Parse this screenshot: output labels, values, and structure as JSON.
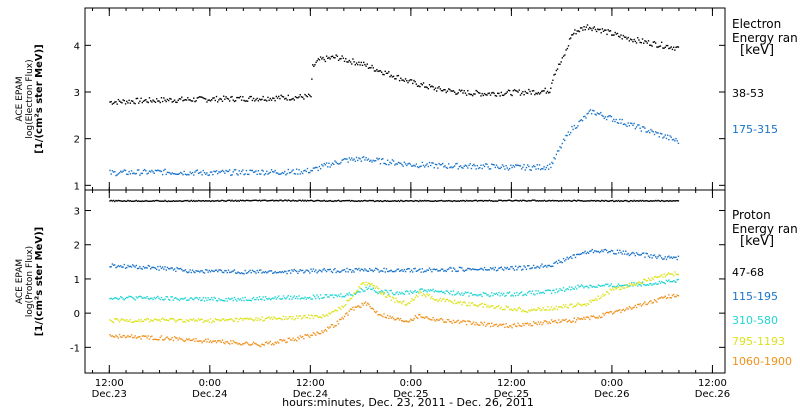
{
  "chart_data": [
    {
      "type": "scatter",
      "panel": "electron",
      "ylabel_lines": [
        "ACE EPAM",
        "log(Electron Flux)",
        "[1/(cm²s ster MeV)]"
      ],
      "legend_title": [
        "Electron",
        "Energy ran",
        "[keV]"
      ],
      "ylim": [
        0.9,
        4.8
      ],
      "yticks": [
        1,
        2,
        3,
        4
      ],
      "series": [
        {
          "name": "38-53",
          "color": "#000000",
          "points": [
            [
              0,
              2.8
            ],
            [
              6,
              2.84
            ],
            [
              12,
              2.86
            ],
            [
              18,
              2.88
            ],
            [
              22,
              2.9
            ],
            [
              24,
              2.92
            ],
            [
              24.2,
              3.55
            ],
            [
              25,
              3.7
            ],
            [
              27,
              3.76
            ],
            [
              30,
              3.62
            ],
            [
              33,
              3.42
            ],
            [
              36,
              3.22
            ],
            [
              39,
              3.08
            ],
            [
              42,
              3.0
            ],
            [
              45,
              2.98
            ],
            [
              48,
              3.0
            ],
            [
              51,
              3.02
            ],
            [
              52.5,
              3.05
            ],
            [
              53,
              3.4
            ],
            [
              54,
              3.7
            ],
            [
              54.6,
              3.95
            ],
            [
              55,
              4.2
            ],
            [
              55.5,
              4.3
            ],
            [
              57,
              4.42
            ],
            [
              58.5,
              4.35
            ],
            [
              61,
              4.2
            ],
            [
              64,
              4.08
            ],
            [
              68,
              3.95
            ]
          ]
        },
        {
          "name": "175-315",
          "color": "#1a73c8",
          "points": [
            [
              0,
              1.28
            ],
            [
              6,
              1.3
            ],
            [
              12,
              1.28
            ],
            [
              18,
              1.3
            ],
            [
              22,
              1.3
            ],
            [
              24,
              1.33
            ],
            [
              26,
              1.45
            ],
            [
              28,
              1.55
            ],
            [
              30,
              1.58
            ],
            [
              33,
              1.52
            ],
            [
              36,
              1.46
            ],
            [
              40,
              1.43
            ],
            [
              45,
              1.42
            ],
            [
              48,
              1.4
            ],
            [
              51,
              1.4
            ],
            [
              52.5,
              1.42
            ],
            [
              53,
              1.55
            ],
            [
              54,
              1.9
            ],
            [
              55,
              2.2
            ],
            [
              56,
              2.35
            ],
            [
              57.5,
              2.6
            ],
            [
              59,
              2.5
            ],
            [
              61,
              2.38
            ],
            [
              64,
              2.2
            ],
            [
              68,
              1.95
            ]
          ]
        }
      ]
    },
    {
      "type": "scatter",
      "panel": "proton",
      "ylabel_lines": [
        "ACE EPAM",
        "log(Proton Flux)",
        "[1/(cm²s ster MeV)]"
      ],
      "legend_title": [
        "Proton",
        "Energy ran",
        "[keV]"
      ],
      "ylim": [
        -1.75,
        3.6
      ],
      "yticks": [
        -1,
        0,
        1,
        2,
        3
      ],
      "series": [
        {
          "name": "47-68",
          "color": "#000000",
          "points": [
            [
              0,
              3.3
            ],
            [
              10,
              3.3
            ],
            [
              20,
              3.31
            ],
            [
              30,
              3.3
            ],
            [
              40,
              3.3
            ],
            [
              50,
              3.31
            ],
            [
              60,
              3.3
            ],
            [
              68,
              3.3
            ]
          ]
        },
        {
          "name": "115-195",
          "color": "#1a73c8",
          "points": [
            [
              0,
              1.4
            ],
            [
              5,
              1.35
            ],
            [
              10,
              1.25
            ],
            [
              15,
              1.23
            ],
            [
              20,
              1.22
            ],
            [
              25,
              1.26
            ],
            [
              30,
              1.28
            ],
            [
              35,
              1.26
            ],
            [
              40,
              1.3
            ],
            [
              45,
              1.3
            ],
            [
              50,
              1.35
            ],
            [
              53,
              1.45
            ],
            [
              56,
              1.75
            ],
            [
              58,
              1.85
            ],
            [
              60,
              1.82
            ],
            [
              63,
              1.74
            ],
            [
              66,
              1.65
            ],
            [
              68,
              1.62
            ]
          ]
        },
        {
          "name": "310-580",
          "color": "#22d4d4",
          "points": [
            [
              0,
              0.48
            ],
            [
              6,
              0.45
            ],
            [
              12,
              0.42
            ],
            [
              18,
              0.45
            ],
            [
              22,
              0.48
            ],
            [
              26,
              0.5
            ],
            [
              29,
              0.58
            ],
            [
              31,
              0.78
            ],
            [
              32,
              0.65
            ],
            [
              34,
              0.62
            ],
            [
              36,
              0.64
            ],
            [
              38,
              0.7
            ],
            [
              42,
              0.58
            ],
            [
              46,
              0.56
            ],
            [
              50,
              0.6
            ],
            [
              53,
              0.65
            ],
            [
              56,
              0.8
            ],
            [
              60,
              0.82
            ],
            [
              64,
              0.88
            ],
            [
              68,
              0.95
            ]
          ]
        },
        {
          "name": "795-1193",
          "color": "#dce21c",
          "points": [
            [
              0,
              -0.2
            ],
            [
              6,
              -0.18
            ],
            [
              12,
              -0.2
            ],
            [
              18,
              -0.15
            ],
            [
              22,
              -0.12
            ],
            [
              26,
              -0.05
            ],
            [
              28,
              0.25
            ],
            [
              30,
              0.85
            ],
            [
              31,
              0.92
            ],
            [
              32.5,
              0.6
            ],
            [
              34,
              0.4
            ],
            [
              35.5,
              0.3
            ],
            [
              37,
              0.62
            ],
            [
              39,
              0.42
            ],
            [
              42,
              0.32
            ],
            [
              46,
              0.2
            ],
            [
              50,
              0.1
            ],
            [
              54,
              0.2
            ],
            [
              57,
              0.3
            ],
            [
              60,
              0.7
            ],
            [
              63,
              0.9
            ],
            [
              66,
              1.1
            ],
            [
              68,
              1.2
            ]
          ]
        },
        {
          "name": "1060-1900",
          "color": "#f0901a",
          "points": [
            [
              0,
              -0.65
            ],
            [
              6,
              -0.7
            ],
            [
              12,
              -0.8
            ],
            [
              18,
              -0.9
            ],
            [
              22,
              -0.75
            ],
            [
              25,
              -0.55
            ],
            [
              27,
              -0.3
            ],
            [
              29,
              0.15
            ],
            [
              30.5,
              0.3
            ],
            [
              32,
              0.02
            ],
            [
              34,
              -0.15
            ],
            [
              35.5,
              -0.2
            ],
            [
              37,
              -0.05
            ],
            [
              38,
              -0.12
            ],
            [
              40,
              -0.2
            ],
            [
              44,
              -0.3
            ],
            [
              48,
              -0.35
            ],
            [
              52,
              -0.25
            ],
            [
              55,
              -0.2
            ],
            [
              58,
              -0.1
            ],
            [
              61,
              0.1
            ],
            [
              64,
              0.3
            ],
            [
              67,
              0.52
            ],
            [
              68,
              0.55
            ]
          ]
        }
      ]
    }
  ],
  "x_axis": {
    "ticks": [
      {
        "time": "12:00",
        "date": "Dec.23",
        "hours": 0
      },
      {
        "time": "0:00",
        "date": "Dec.24",
        "hours": 12
      },
      {
        "time": "12:00",
        "date": "Dec.24",
        "hours": 24
      },
      {
        "time": "0:00",
        "date": "Dec.25",
        "hours": 36
      },
      {
        "time": "12:00",
        "date": "Dec.25",
        "hours": 48
      },
      {
        "time": "0:00",
        "date": "Dec.26",
        "hours": 60
      },
      {
        "time": "12:00",
        "date": "Dec.26",
        "hours": 72
      }
    ],
    "xlim_hours": [
      -2.9,
      73.5
    ],
    "label": "hours:minutes, Dec. 23, 2011 - Dec. 26, 2011"
  }
}
